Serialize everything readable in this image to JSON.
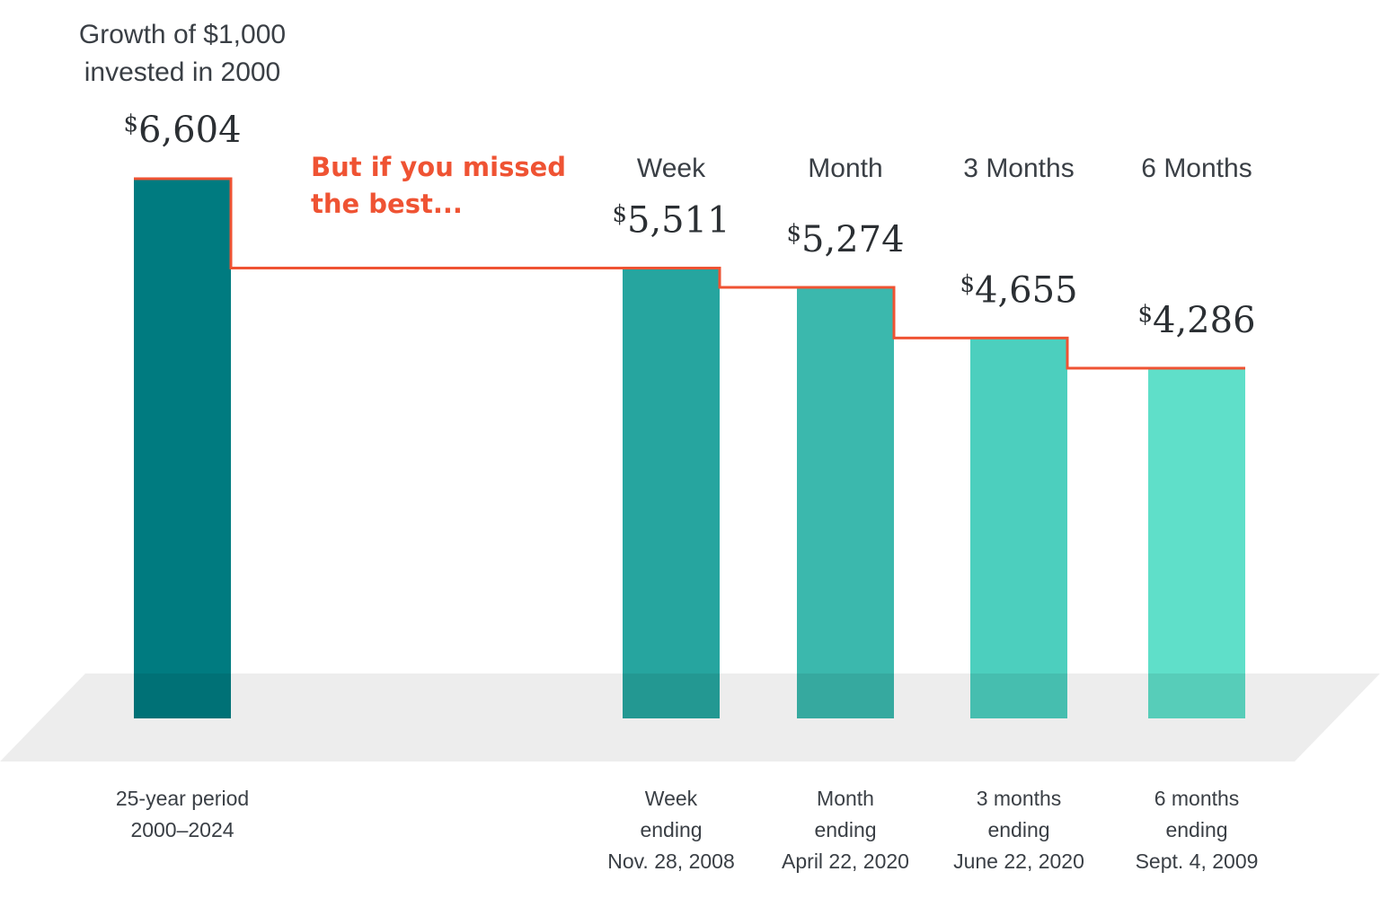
{
  "chart_data": {
    "type": "bar",
    "title_lines": [
      "Growth of $1,000",
      "invested in 2000"
    ],
    "callout_lines": [
      "But if you missed",
      "the best..."
    ],
    "currency_symbol": "$",
    "categories": [
      {
        "header": "",
        "value": 6604,
        "value_label": "6,604",
        "label_lines": [
          "25-year period",
          "2000–2024"
        ],
        "color": "#007b80"
      },
      {
        "header": "Week",
        "value": 5511,
        "value_label": "5,511",
        "label_lines": [
          "Week",
          "ending",
          "Nov. 28, 2008"
        ],
        "color": "#26a59f"
      },
      {
        "header": "Month",
        "value": 5274,
        "value_label": "5,274",
        "label_lines": [
          "Month",
          "ending",
          "April 22, 2020"
        ],
        "color": "#3bb8ad"
      },
      {
        "header": "3 Months",
        "value": 4655,
        "value_label": "4,655",
        "label_lines": [
          "3 months",
          "ending",
          "June 22, 2020"
        ],
        "color": "#4ccfbe"
      },
      {
        "header": "6 Months",
        "value": 4286,
        "value_label": "4,286",
        "label_lines": [
          "6 months",
          "ending",
          "Sept. 4, 2009"
        ],
        "color": "#5fdfc9"
      }
    ],
    "step_line_color": "#ef5333",
    "floor_color": "#ededed"
  }
}
